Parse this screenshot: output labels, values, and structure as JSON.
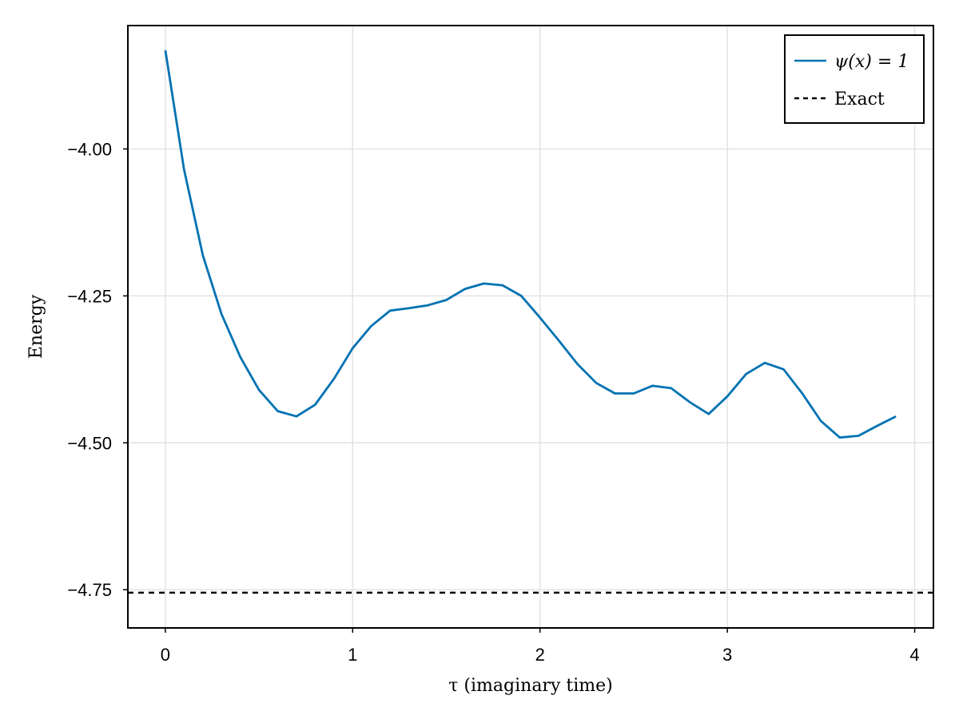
{
  "chart_data": {
    "type": "line",
    "xlabel": "τ (imaginary time)",
    "ylabel": "Energy",
    "xlim": [
      -0.2,
      4.1
    ],
    "ylim": [
      -4.815,
      -3.79
    ],
    "xticks": [
      0,
      1,
      2,
      3,
      4
    ],
    "xtick_labels": [
      "0",
      "1",
      "2",
      "3",
      "4"
    ],
    "yticks": [
      -4.0,
      -4.25,
      -4.5,
      -4.75
    ],
    "ytick_labels": [
      "−4.00",
      "−4.25",
      "−4.50",
      "−4.75"
    ],
    "grid": true,
    "legend_position": "top-right",
    "series": [
      {
        "name": "ψ(x) = 1",
        "style": "solid",
        "color": "#0072b2",
        "x": [
          0.0,
          0.1,
          0.2,
          0.3,
          0.4,
          0.5,
          0.6,
          0.7,
          0.8,
          0.9,
          1.0,
          1.1,
          1.2,
          1.3,
          1.4,
          1.5,
          1.6,
          1.7,
          1.8,
          1.9,
          2.0,
          2.1,
          2.2,
          2.3,
          2.4,
          2.5,
          2.6,
          2.7,
          2.8,
          2.9,
          3.0,
          3.1,
          3.2,
          3.3,
          3.4,
          3.5,
          3.6,
          3.7,
          3.8,
          3.9
        ],
        "y": [
          -3.832,
          -4.035,
          -4.181,
          -4.281,
          -4.354,
          -4.41,
          -4.446,
          -4.455,
          -4.435,
          -4.391,
          -4.339,
          -4.301,
          -4.275,
          -4.271,
          -4.266,
          -4.257,
          -4.238,
          -4.229,
          -4.232,
          -4.25,
          -4.287,
          -4.326,
          -4.366,
          -4.398,
          -4.416,
          -4.416,
          -4.403,
          -4.407,
          -4.431,
          -4.451,
          -4.421,
          -4.383,
          -4.364,
          -4.375,
          -4.416,
          -4.463,
          -4.491,
          -4.488,
          -4.471,
          -4.455
        ]
      },
      {
        "name": "Exact",
        "style": "dashed",
        "color": "#000000",
        "y": -4.755
      }
    ]
  }
}
